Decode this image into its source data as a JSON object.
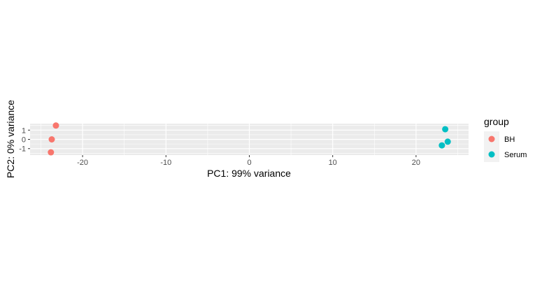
{
  "chart_data": {
    "type": "scatter",
    "xlabel": "PC1: 99% variance",
    "ylabel": "PC2: 0% variance",
    "xlim": [
      -26.3,
      26.3
    ],
    "ylim": [
      -1.7,
      1.7
    ],
    "x_ticks": [
      -20,
      -10,
      0,
      10,
      20
    ],
    "y_ticks": [
      1,
      0,
      -1
    ],
    "grid": true,
    "legend": {
      "title": "group",
      "placement": "right"
    },
    "series": [
      {
        "name": "BH",
        "color": "#F8766D",
        "points": [
          {
            "x": -23.2,
            "y": 1.5
          },
          {
            "x": -23.7,
            "y": 0.0
          },
          {
            "x": -23.8,
            "y": -1.4
          }
        ]
      },
      {
        "name": "Serum",
        "color": "#00BFC4",
        "points": [
          {
            "x": 23.5,
            "y": 1.1
          },
          {
            "x": 23.8,
            "y": -0.25
          },
          {
            "x": 23.1,
            "y": -0.65
          }
        ]
      }
    ]
  }
}
